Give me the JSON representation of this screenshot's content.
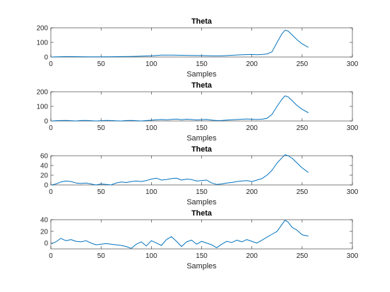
{
  "colors": {
    "line": "#0072BD",
    "axis": "#262626",
    "background": "#ffffff"
  },
  "chart_data": [
    {
      "type": "line",
      "title": "Theta",
      "xlabel": "Samples",
      "ylabel": "",
      "xlim": [
        0,
        300
      ],
      "ylim": [
        0,
        200
      ],
      "xticks": [
        0,
        50,
        100,
        150,
        200,
        250,
        300
      ],
      "yticks": [
        0,
        100,
        200
      ],
      "grid": false,
      "series": [
        {
          "x": [
            1,
            5,
            10,
            15,
            20,
            30,
            40,
            50,
            60,
            70,
            80,
            90,
            100,
            105,
            110,
            120,
            130,
            140,
            150,
            160,
            170,
            180,
            190,
            200,
            205,
            210,
            215,
            220,
            225,
            230,
            233,
            236,
            240,
            245,
            250,
            256
          ],
          "y": [
            0,
            1,
            2,
            3,
            3,
            2,
            1,
            1,
            2,
            3,
            4,
            6,
            8,
            11,
            13,
            13,
            12,
            11,
            10,
            8,
            8,
            12,
            15,
            17,
            15,
            17,
            21,
            35,
            100,
            160,
            184,
            178,
            152,
            118,
            90,
            67
          ]
        }
      ]
    },
    {
      "type": "line",
      "title": "Theta",
      "xlabel": "Samples",
      "ylabel": "",
      "xlim": [
        0,
        300
      ],
      "ylim": [
        0,
        200
      ],
      "xticks": [
        0,
        50,
        100,
        150,
        200,
        250,
        300
      ],
      "yticks": [
        0,
        100,
        200
      ],
      "grid": false,
      "series": [
        {
          "x": [
            1,
            5,
            10,
            15,
            20,
            25,
            30,
            35,
            40,
            45,
            50,
            55,
            60,
            65,
            70,
            75,
            80,
            85,
            90,
            95,
            100,
            105,
            110,
            115,
            120,
            125,
            130,
            135,
            140,
            145,
            150,
            155,
            160,
            165,
            170,
            175,
            180,
            185,
            190,
            195,
            200,
            205,
            210,
            215,
            220,
            225,
            230,
            233,
            236,
            240,
            245,
            250,
            256
          ],
          "y": [
            0,
            2,
            3,
            4,
            2,
            0,
            3,
            4,
            2,
            0,
            2,
            4,
            3,
            1,
            0,
            3,
            4,
            2,
            0,
            3,
            5,
            8,
            10,
            8,
            11,
            13,
            9,
            12,
            10,
            7,
            9,
            11,
            6,
            3,
            4,
            6,
            8,
            10,
            12,
            14,
            12,
            10,
            12,
            18,
            45,
            100,
            150,
            172,
            165,
            140,
            105,
            80,
            57
          ]
        }
      ]
    },
    {
      "type": "line",
      "title": "Theta",
      "xlabel": "Samples",
      "ylabel": "",
      "xlim": [
        0,
        300
      ],
      "ylim": [
        0,
        60
      ],
      "xticks": [
        0,
        50,
        100,
        150,
        200,
        250,
        300
      ],
      "yticks": [
        0,
        20,
        40,
        60
      ],
      "grid": false,
      "series": [
        {
          "x": [
            1,
            5,
            10,
            15,
            20,
            25,
            30,
            35,
            40,
            45,
            50,
            55,
            60,
            65,
            70,
            75,
            80,
            85,
            90,
            95,
            100,
            105,
            110,
            115,
            120,
            125,
            130,
            135,
            140,
            145,
            150,
            155,
            160,
            165,
            170,
            175,
            180,
            185,
            190,
            195,
            200,
            205,
            210,
            215,
            220,
            225,
            230,
            233,
            236,
            240,
            245,
            250,
            256
          ],
          "y": [
            0,
            2,
            6,
            8,
            7,
            4,
            3,
            4,
            2,
            0,
            2,
            1,
            0,
            4,
            6,
            5,
            7,
            8,
            7,
            9,
            12,
            14,
            10,
            11,
            13,
            14,
            10,
            12,
            11,
            8,
            9,
            10,
            4,
            1,
            2,
            4,
            5,
            7,
            8,
            9,
            7,
            10,
            13,
            20,
            30,
            45,
            56,
            62,
            60,
            55,
            45,
            35,
            26
          ]
        }
      ]
    },
    {
      "type": "line",
      "title": "Theta",
      "xlabel": "Samples",
      "ylabel": "",
      "xlim": [
        0,
        300
      ],
      "ylim": [
        -10,
        40
      ],
      "xticks": [
        0,
        50,
        100,
        150,
        200,
        250,
        300
      ],
      "yticks": [
        0,
        20,
        40
      ],
      "grid": false,
      "series": [
        {
          "x": [
            1,
            5,
            10,
            15,
            20,
            25,
            30,
            35,
            40,
            45,
            50,
            55,
            60,
            65,
            70,
            75,
            80,
            85,
            90,
            95,
            100,
            105,
            110,
            115,
            120,
            125,
            130,
            135,
            140,
            145,
            150,
            155,
            160,
            165,
            170,
            175,
            180,
            185,
            190,
            195,
            200,
            205,
            210,
            215,
            220,
            225,
            230,
            233,
            236,
            240,
            245,
            250,
            256
          ],
          "y": [
            -1,
            2,
            8,
            4,
            6,
            3,
            2,
            4,
            0,
            -3,
            -2,
            -1,
            -2,
            -3,
            -4,
            -6,
            -9,
            -2,
            2,
            -5,
            4,
            0,
            -4,
            6,
            11,
            3,
            -6,
            2,
            5,
            -2,
            3,
            0,
            -3,
            -8,
            -2,
            3,
            1,
            5,
            2,
            6,
            3,
            0,
            5,
            10,
            15,
            20,
            32,
            39,
            36,
            27,
            22,
            14,
            12
          ]
        }
      ]
    }
  ]
}
